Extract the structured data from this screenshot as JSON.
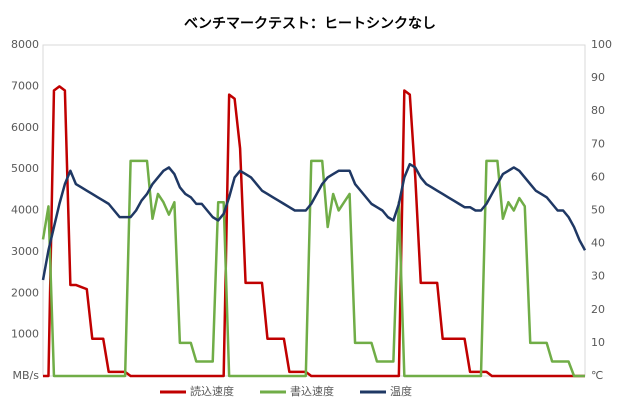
{
  "chart_data": {
    "type": "line",
    "title": "ベンチマークテスト：ヒートシンクなし",
    "categories": [
      null,
      null,
      null,
      null,
      null,
      null,
      null,
      null,
      null,
      null,
      null,
      null,
      null,
      null,
      null,
      null,
      null,
      null,
      null,
      null,
      null,
      null,
      null,
      null,
      null,
      null,
      null,
      null,
      null,
      null,
      null,
      null,
      null,
      null,
      null,
      null,
      null,
      null,
      null,
      null,
      null,
      null,
      null,
      null,
      null,
      null,
      null,
      null,
      null,
      null,
      null,
      null,
      null,
      null,
      null,
      null,
      null,
      null,
      null,
      null,
      null,
      null,
      null,
      null,
      null,
      null,
      null,
      null,
      null,
      null,
      null,
      null,
      null,
      null,
      null,
      null,
      null,
      null,
      null,
      null,
      null,
      null,
      null,
      null,
      null,
      null,
      null,
      null,
      null,
      null,
      null,
      null,
      null,
      null,
      null,
      null,
      null,
      null,
      null,
      null
    ],
    "ylim": [
      0,
      8000
    ],
    "yticks": [
      {
        "value": 0,
        "label": "MB/s"
      },
      1000,
      2000,
      3000,
      4000,
      5000,
      6000,
      7000,
      8000
    ],
    "y2lim": [
      0,
      100
    ],
    "y2ticks": [
      {
        "value": 0,
        "label": "℃"
      },
      10,
      20,
      30,
      40,
      50,
      60,
      70,
      80,
      90,
      100
    ],
    "grid": false,
    "legend": "bottom",
    "series": [
      {
        "name": "読込速度",
        "color": "#c00000",
        "values": [
          0,
          0,
          6900,
          7000,
          6900,
          2200,
          2200,
          2150,
          2100,
          900,
          900,
          900,
          100,
          100,
          100,
          100,
          0,
          0,
          0,
          0,
          0,
          0,
          0,
          0,
          0,
          0,
          0,
          0,
          0,
          0,
          0,
          0,
          0,
          0,
          6800,
          6700,
          5500,
          2250,
          2250,
          2250,
          2250,
          900,
          900,
          900,
          900,
          100,
          100,
          100,
          100,
          0,
          0,
          0,
          0,
          0,
          0,
          0,
          0,
          0,
          0,
          0,
          0,
          0,
          0,
          0,
          0,
          0,
          6900,
          6800,
          4800,
          2250,
          2250,
          2250,
          2250,
          900,
          900,
          900,
          900,
          900,
          100,
          100,
          100,
          100,
          0,
          0,
          0,
          0,
          0,
          0,
          0,
          0,
          0,
          0,
          0,
          0,
          0,
          0,
          0,
          0,
          0,
          0
        ]
      },
      {
        "name": "書込速度",
        "color": "#70ad47",
        "values": [
          3300,
          4100,
          0,
          0,
          0,
          0,
          0,
          0,
          0,
          0,
          0,
          0,
          0,
          0,
          0,
          0,
          5200,
          5200,
          5200,
          5200,
          3800,
          4400,
          4200,
          3900,
          4200,
          800,
          800,
          800,
          350,
          350,
          350,
          350,
          4200,
          4200,
          0,
          0,
          0,
          0,
          0,
          0,
          0,
          0,
          0,
          0,
          0,
          0,
          0,
          0,
          0,
          5200,
          5200,
          5200,
          3600,
          4400,
          4000,
          4200,
          4400,
          800,
          800,
          800,
          800,
          350,
          350,
          350,
          350,
          4200,
          0,
          0,
          0,
          0,
          0,
          0,
          0,
          0,
          0,
          0,
          0,
          0,
          0,
          0,
          0,
          5200,
          5200,
          5200,
          3800,
          4200,
          4000,
          4300,
          4100,
          800,
          800,
          800,
          800,
          350,
          350,
          350,
          350,
          0,
          0,
          0
        ]
      },
      {
        "name": "温度",
        "color": "#1f3864",
        "axis": "y2",
        "values": [
          29,
          38,
          45,
          52,
          58,
          62,
          58,
          57,
          56,
          55,
          54,
          53,
          52,
          50,
          48,
          48,
          48,
          50,
          53,
          55,
          58,
          60,
          62,
          63,
          61,
          57,
          55,
          54,
          52,
          52,
          50,
          48,
          47,
          49,
          54,
          60,
          62,
          61,
          60,
          58,
          56,
          55,
          54,
          53,
          52,
          51,
          50,
          50,
          50,
          52,
          55,
          58,
          60,
          61,
          62,
          62,
          62,
          58,
          56,
          54,
          52,
          51,
          50,
          48,
          47,
          52,
          60,
          64,
          63,
          60,
          58,
          57,
          56,
          55,
          54,
          53,
          52,
          51,
          51,
          50,
          50,
          52,
          55,
          58,
          61,
          62,
          63,
          62,
          60,
          58,
          56,
          55,
          54,
          52,
          50,
          50,
          48,
          45,
          41,
          38
        ]
      }
    ]
  }
}
